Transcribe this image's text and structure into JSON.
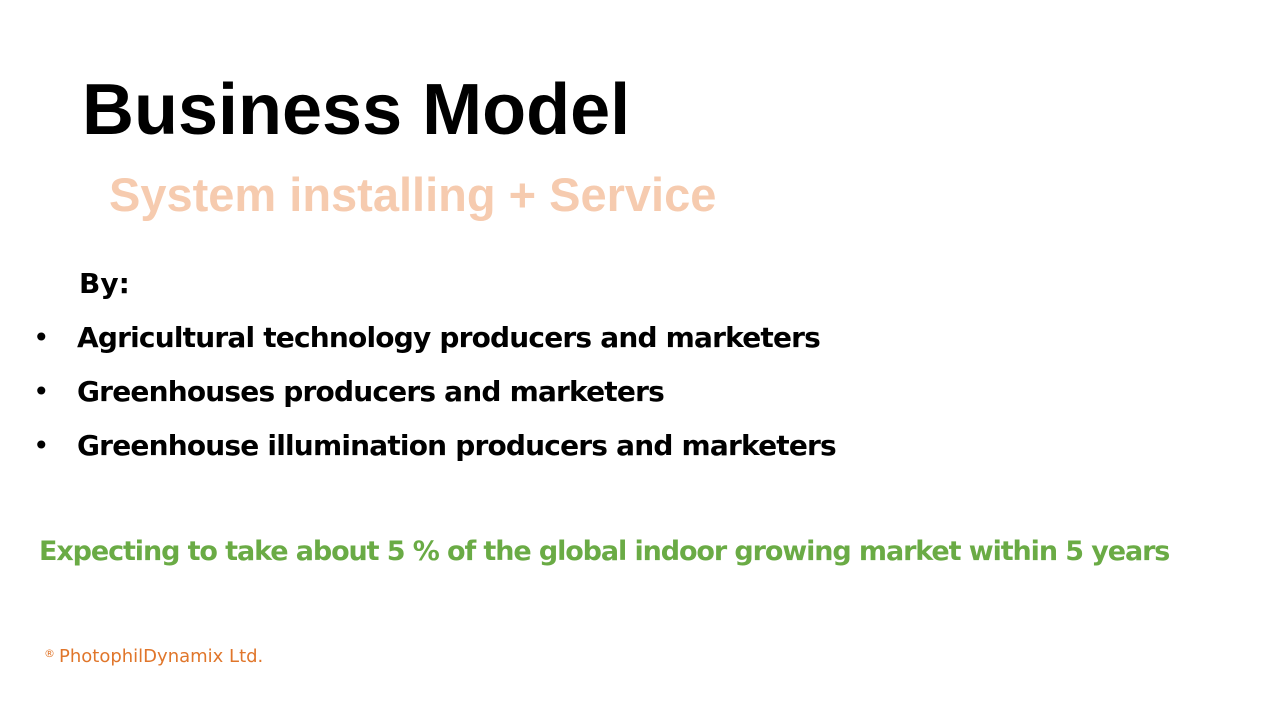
{
  "slide": {
    "title": "Business Model",
    "subtitle": "System installing + Service",
    "by_label": "By:",
    "bullets": [
      "Agricultural technology producers and marketers",
      "Greenhouses producers and marketers",
      "Greenhouse illumination producers and marketers"
    ],
    "expectation": "Expecting to take about 5 % of the global indoor growing market within 5 years",
    "footer": {
      "registered_mark": "®",
      "company": "PhotophilDynamix Ltd."
    }
  },
  "colors": {
    "title": "#000000",
    "subtitle": "#F6CBAF",
    "expectation": "#6AAB45",
    "footer": "#E0762B"
  }
}
